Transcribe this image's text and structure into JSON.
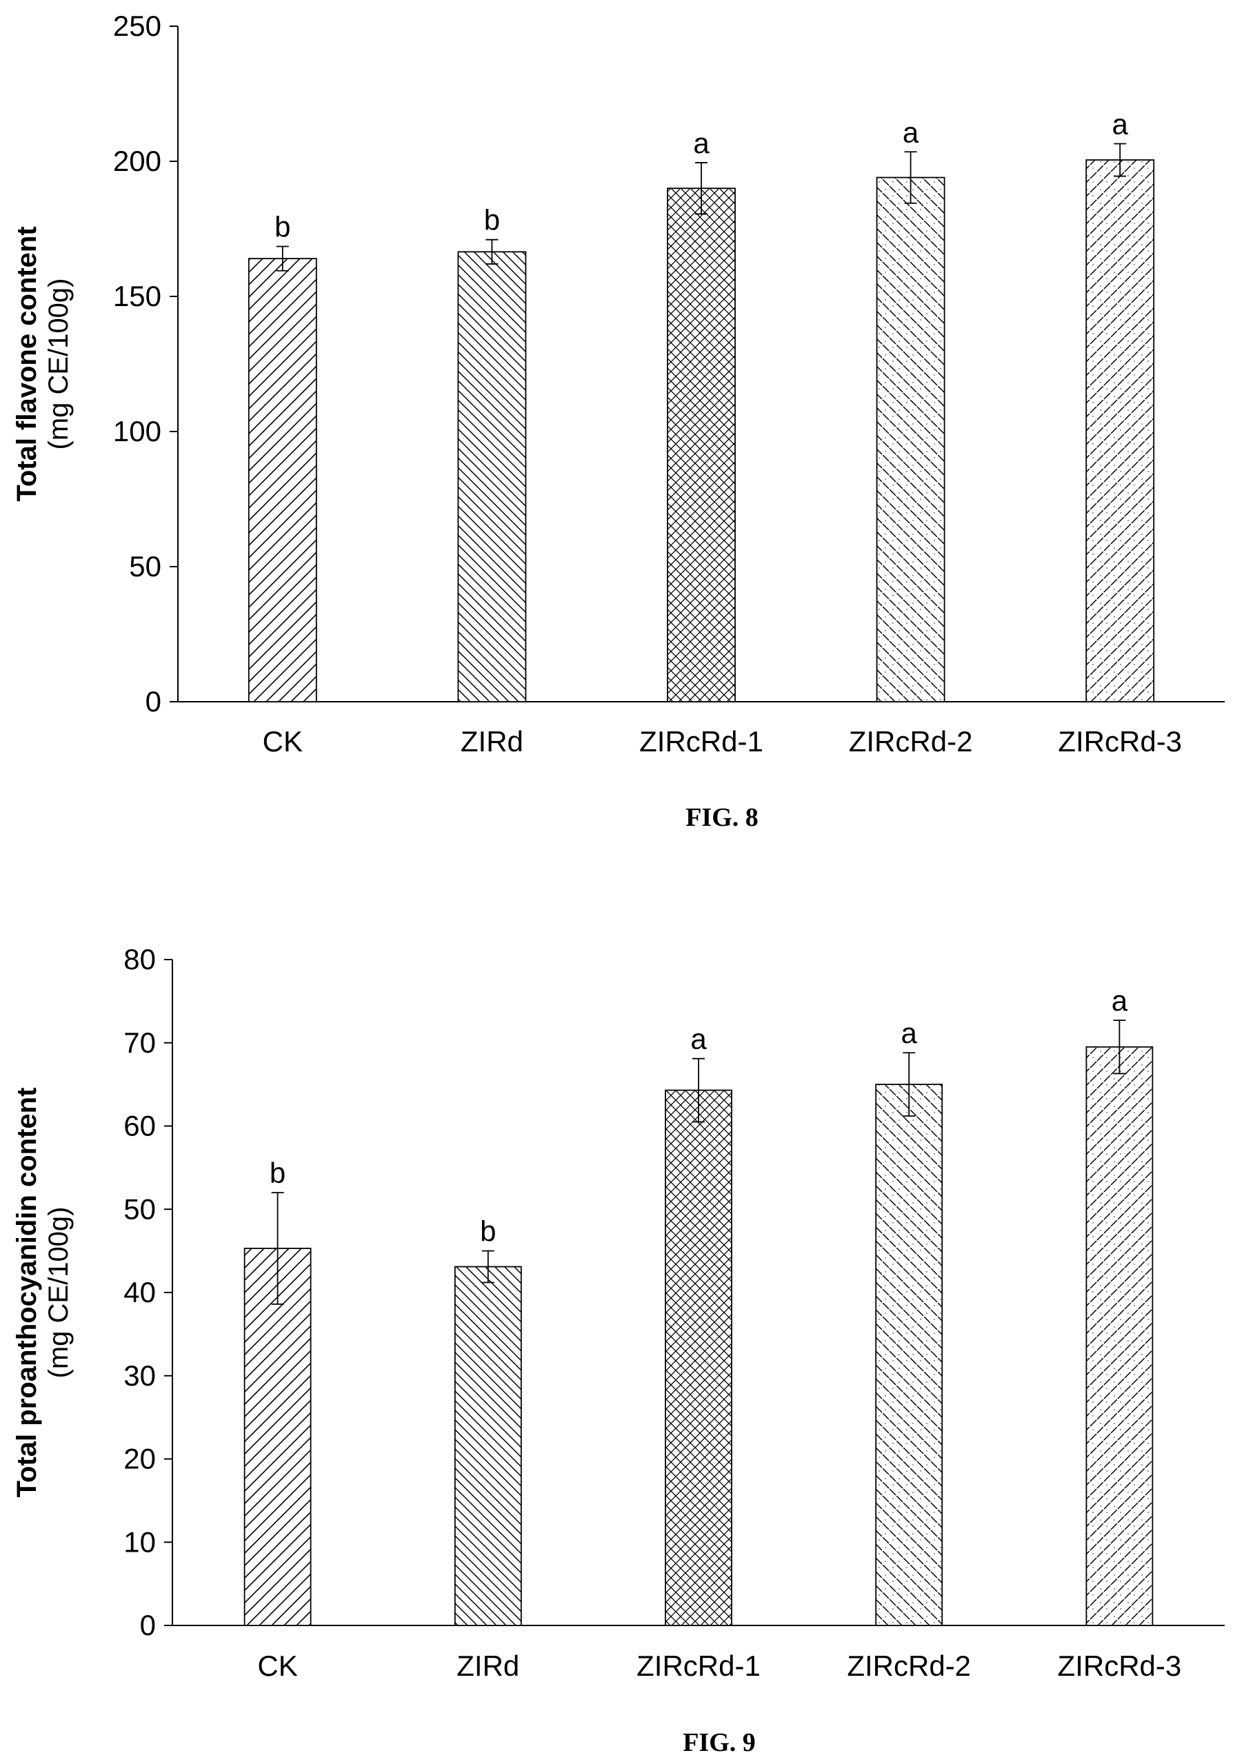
{
  "chart_data": [
    {
      "type": "bar",
      "caption": "FIG. 8",
      "ylabel_bold": "Total flavone content",
      "ylabel_unit": "(mg CE/100g)",
      "categories": [
        "CK",
        "ZIRd",
        "ZIRcRd-1",
        "ZIRcRd-2",
        "ZIRcRd-3"
      ],
      "values": [
        164,
        166.5,
        190,
        194,
        200.5
      ],
      "errors": [
        4.5,
        4.5,
        9.5,
        9.5,
        6.0
      ],
      "significance": [
        "b",
        "b",
        "a",
        "a",
        "a"
      ],
      "patterns": [
        "diag-fwd",
        "diag-back",
        "crosshatch",
        "dash-back",
        "dash-fwd"
      ],
      "ylim": [
        0,
        250
      ],
      "yticks": [
        0,
        50,
        100,
        150,
        200,
        250
      ],
      "grid": false
    },
    {
      "type": "bar",
      "caption": "FIG. 9",
      "ylabel_bold": "Total proanthocyanidin content",
      "ylabel_unit": "(mg CE/100g)",
      "categories": [
        "CK",
        "ZIRd",
        "ZIRcRd-1",
        "ZIRcRd-2",
        "ZIRcRd-3"
      ],
      "values": [
        45.3,
        43.1,
        64.3,
        65.0,
        69.5
      ],
      "errors": [
        6.7,
        1.9,
        3.8,
        3.8,
        3.2
      ],
      "significance": [
        "b",
        "b",
        "a",
        "a",
        "a"
      ],
      "patterns": [
        "diag-fwd",
        "diag-back",
        "crosshatch",
        "dash-back",
        "dash-fwd"
      ],
      "ylim": [
        0,
        80
      ],
      "yticks": [
        0,
        10,
        20,
        30,
        40,
        50,
        60,
        70,
        80
      ],
      "grid": false
    }
  ]
}
